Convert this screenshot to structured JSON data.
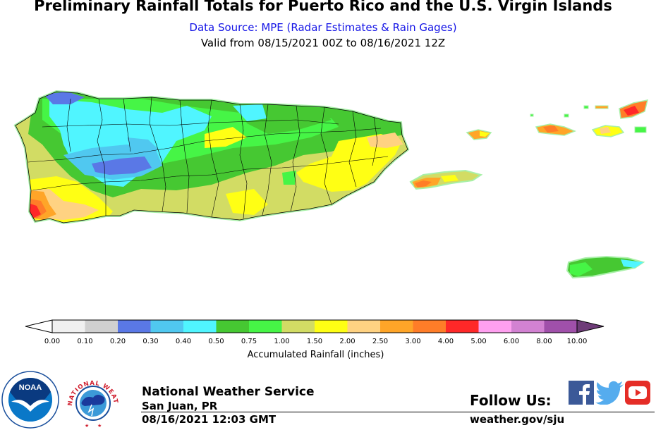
{
  "header": {
    "title": "Preliminary Rainfall Totals for Puerto Rico and the U.S. Virgin Islands",
    "source": "Data Source: MPE (Radar Estimates & Rain Gages)",
    "valid": "Valid from 08/15/2021 00Z to 08/16/2021 12Z"
  },
  "legend": {
    "title": "Accumulated Rainfall (inches)",
    "ticks": [
      "0.00",
      "0.10",
      "0.20",
      "0.30",
      "0.40",
      "0.50",
      "0.75",
      "1.00",
      "1.50",
      "2.00",
      "2.50",
      "3.00",
      "4.00",
      "5.00",
      "6.00",
      "8.00",
      "10.00"
    ],
    "colors": [
      "#f0f0f0",
      "#d0d0d0",
      "#5a78e6",
      "#50c8f0",
      "#50f5ff",
      "#46c832",
      "#46f546",
      "#d2dc64",
      "#ffff14",
      "#ffd282",
      "#ffa528",
      "#ff7d28",
      "#ff2828",
      "#ffa0f0",
      "#d282d2",
      "#a050aa"
    ],
    "underflow_color": "#ffffff",
    "overflow_color": "#6e3c78"
  },
  "colors": {
    "subtitle": "#1414e6",
    "county_lines": "#000000",
    "coast_halo": "#a8f0a8"
  },
  "footer": {
    "agency": "National Weather Service",
    "office": "San Juan, PR",
    "issued": "08/16/2021 12:03 GMT",
    "follow": "Follow Us:",
    "website": "weather.gov/sju",
    "noaa_text": "NOAA",
    "nws_logo_text": "NATIONAL WEATHER SERVICE"
  },
  "social": [
    "facebook-icon",
    "twitter-icon",
    "youtube-icon"
  ]
}
